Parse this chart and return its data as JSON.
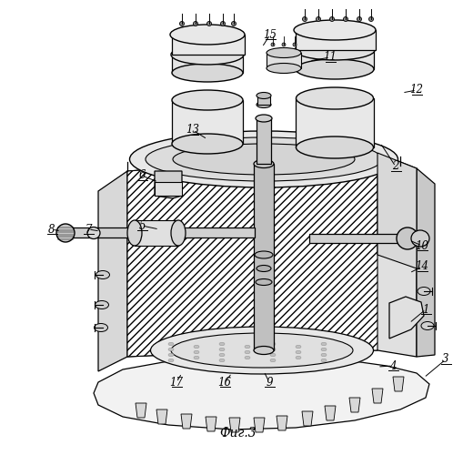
{
  "title": "Фиг.3",
  "background_color": "#ffffff",
  "line_color": "#000000",
  "fig_width": 5.2,
  "fig_height": 5.0,
  "dpi": 100
}
